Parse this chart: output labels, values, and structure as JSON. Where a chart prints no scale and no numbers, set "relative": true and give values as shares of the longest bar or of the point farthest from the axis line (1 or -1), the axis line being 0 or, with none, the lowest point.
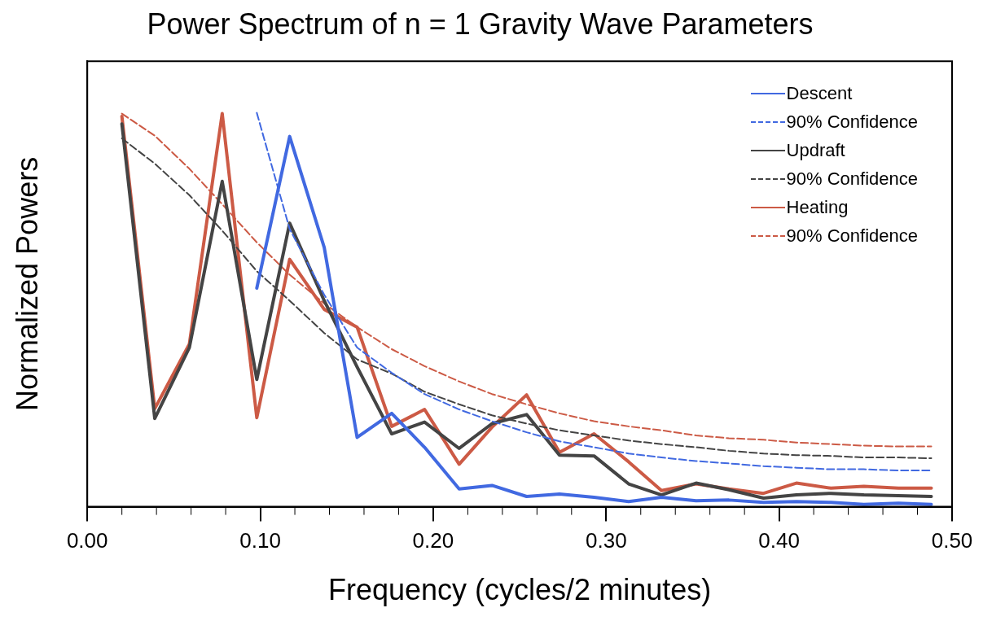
{
  "chart_data": {
    "type": "line",
    "title": "Power Spectrum of n = 1 Gravity Wave Parameters",
    "xlabel": "Frequency (cycles/2 minutes)",
    "ylabel": "Normalized Powers",
    "relative": true,
    "legend": "top right",
    "grid": false,
    "marker": "none",
    "x": [
      0.02,
      0.039,
      0.059,
      0.078,
      0.098,
      0.117,
      0.137,
      0.156,
      0.176,
      0.195,
      0.215,
      0.234,
      0.254,
      0.273,
      0.293,
      0.313,
      0.332,
      0.352,
      0.371,
      0.391,
      0.41,
      0.43,
      0.449,
      0.469,
      0.488
    ],
    "xlim": [
      0,
      0.5
    ],
    "xticks": [
      {
        "value": 0,
        "label": "0.00"
      },
      {
        "value": 0.1,
        "label": "0.10"
      },
      {
        "value": 0.2,
        "label": "0.20"
      },
      {
        "value": 0.3,
        "label": "0.30"
      },
      {
        "value": 0.4,
        "label": "0.40"
      },
      {
        "value": 0.5,
        "label": "0.50"
      }
    ],
    "series": [
      {
        "name": "Descent",
        "color": "#4169e1",
        "line_style": "solid",
        "values": [
          null,
          null,
          null,
          null,
          0.555,
          0.94,
          0.658,
          0.176,
          0.237,
          0.151,
          0.045,
          0.054,
          0.026,
          0.032,
          0.024,
          0.013,
          0.024,
          0.015,
          0.017,
          0.011,
          0.013,
          0.011,
          0.006,
          0.009,
          0.006
        ]
      },
      {
        "name": "90% Confidence",
        "color": "#4169e1",
        "line_style": "dashed",
        "values": [
          null,
          null,
          null,
          null,
          1.0,
          0.705,
          0.538,
          0.404,
          0.34,
          0.286,
          0.247,
          0.217,
          0.189,
          0.166,
          0.151,
          0.135,
          0.125,
          0.116,
          0.11,
          0.103,
          0.099,
          0.095,
          0.095,
          0.092,
          0.092
        ]
      },
      {
        "name": "Updraft",
        "color": "#444444",
        "line_style": "solid",
        "values": [
          0.972,
          0.224,
          0.404,
          0.826,
          0.323,
          0.72,
          0.523,
          0.355,
          0.185,
          0.215,
          0.148,
          0.211,
          0.234,
          0.131,
          0.129,
          0.058,
          0.03,
          0.06,
          0.043,
          0.022,
          0.03,
          0.034,
          0.03,
          0.028,
          0.026
        ]
      },
      {
        "name": "90% Confidence",
        "color": "#444444",
        "line_style": "dashed",
        "values": [
          0.935,
          0.871,
          0.791,
          0.701,
          0.598,
          0.523,
          0.441,
          0.374,
          0.338,
          0.292,
          0.26,
          0.232,
          0.211,
          0.194,
          0.181,
          0.168,
          0.159,
          0.151,
          0.142,
          0.135,
          0.131,
          0.129,
          0.125,
          0.125,
          0.123
        ]
      },
      {
        "name": "Heating",
        "color": "#cc5a45",
        "line_style": "solid",
        "values": [
          0.991,
          0.249,
          0.413,
          0.998,
          0.226,
          0.628,
          0.501,
          0.456,
          0.204,
          0.247,
          0.108,
          0.202,
          0.284,
          0.138,
          0.185,
          0.114,
          0.041,
          0.058,
          0.045,
          0.034,
          0.06,
          0.047,
          0.052,
          0.047,
          0.047
        ]
      },
      {
        "name": "90% Confidence",
        "color": "#cc5a45",
        "line_style": "dashed",
        "values": [
          0.998,
          0.942,
          0.858,
          0.768,
          0.671,
          0.589,
          0.516,
          0.456,
          0.4,
          0.357,
          0.318,
          0.286,
          0.26,
          0.237,
          0.217,
          0.204,
          0.194,
          0.181,
          0.174,
          0.17,
          0.163,
          0.159,
          0.155,
          0.153,
          0.153
        ]
      }
    ]
  }
}
